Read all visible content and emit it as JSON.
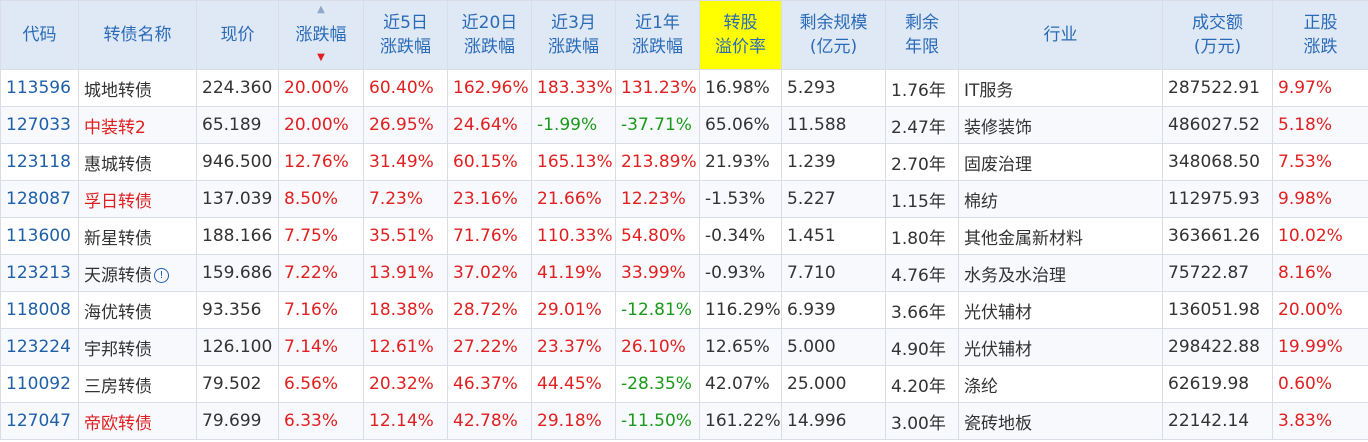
{
  "headers": [
    "代码",
    "转债名称",
    "现价",
    "涨跌幅",
    "近5日|涨跌幅",
    "近20日|涨跌幅",
    "近3月|涨跌幅",
    "近1年|涨跌幅",
    "转股|溢价率",
    "剩余规模|(亿元)",
    "剩余|年限",
    "行业",
    "成交额|(万元)",
    "正股|涨跌"
  ],
  "highlight_color": "#ffff00",
  "rows": [
    {
      "code": "113596",
      "name": "城地转债",
      "name_red": false,
      "price": "224.360",
      "chg": "20.00%",
      "chg5": "60.40%",
      "chg20": "162.96%",
      "chg3m": "183.33%",
      "chg1y": "131.23%",
      "premium": "16.98%",
      "remain": "5.293",
      "years": "1.76年",
      "industry": "IT服务",
      "amount": "287522.91",
      "stock": "9.97%"
    },
    {
      "code": "127033",
      "name": "中装转2",
      "name_red": true,
      "price": "65.189",
      "chg": "20.00%",
      "chg5": "26.95%",
      "chg20": "24.64%",
      "chg3m": "-1.99%",
      "chg1y": "-37.71%",
      "premium": "65.06%",
      "remain": "11.588",
      "years": "2.47年",
      "industry": "装修装饰",
      "amount": "486027.52",
      "stock": "5.18%"
    },
    {
      "code": "123118",
      "name": "惠城转债",
      "name_red": false,
      "price": "946.500",
      "chg": "12.76%",
      "chg5": "31.49%",
      "chg20": "60.15%",
      "chg3m": "165.13%",
      "chg1y": "213.89%",
      "premium": "21.93%",
      "remain": "1.239",
      "years": "2.70年",
      "industry": "固废治理",
      "amount": "348068.50",
      "stock": "7.53%"
    },
    {
      "code": "128087",
      "name": "孚日转债",
      "name_red": true,
      "price": "137.039",
      "chg": "8.50%",
      "chg5": "7.23%",
      "chg20": "23.16%",
      "chg3m": "21.66%",
      "chg1y": "12.23%",
      "premium": "-1.53%",
      "remain": "5.227",
      "years": "1.15年",
      "industry": "棉纺",
      "amount": "112975.93",
      "stock": "9.98%"
    },
    {
      "code": "113600",
      "name": "新星转债",
      "name_red": false,
      "price": "188.166",
      "chg": "7.75%",
      "chg5": "35.51%",
      "chg20": "71.76%",
      "chg3m": "110.33%",
      "chg1y": "54.80%",
      "premium": "-0.34%",
      "remain": "1.451",
      "years": "1.80年",
      "industry": "其他金属新材料",
      "amount": "363661.26",
      "stock": "10.02%"
    },
    {
      "code": "123213",
      "name": "天源转债",
      "name_red": false,
      "info": true,
      "price": "159.686",
      "chg": "7.22%",
      "chg5": "13.91%",
      "chg20": "37.02%",
      "chg3m": "41.19%",
      "chg1y": "33.99%",
      "premium": "-0.93%",
      "remain": "7.710",
      "years": "4.76年",
      "industry": "水务及水治理",
      "amount": "75722.87",
      "stock": "8.16%"
    },
    {
      "code": "118008",
      "name": "海优转债",
      "name_red": false,
      "price": "93.356",
      "chg": "7.16%",
      "chg5": "18.38%",
      "chg20": "28.72%",
      "chg3m": "29.01%",
      "chg1y": "-12.81%",
      "premium": "116.29%",
      "remain": "6.939",
      "years": "3.66年",
      "industry": "光伏辅材",
      "amount": "136051.98",
      "stock": "20.00%"
    },
    {
      "code": "123224",
      "name": "宇邦转债",
      "name_red": false,
      "price": "126.100",
      "chg": "7.14%",
      "chg5": "12.61%",
      "chg20": "27.22%",
      "chg3m": "23.37%",
      "chg1y": "26.10%",
      "premium": "12.65%",
      "remain": "5.000",
      "years": "4.90年",
      "industry": "光伏辅材",
      "amount": "298422.88",
      "stock": "19.99%"
    },
    {
      "code": "110092",
      "name": "三房转债",
      "name_red": false,
      "price": "79.502",
      "chg": "6.56%",
      "chg5": "20.32%",
      "chg20": "46.37%",
      "chg3m": "44.45%",
      "chg1y": "-28.35%",
      "premium": "42.07%",
      "remain": "25.000",
      "years": "4.20年",
      "industry": "涤纶",
      "amount": "62619.98",
      "stock": "0.60%"
    },
    {
      "code": "127047",
      "name": "帝欧转债",
      "name_red": true,
      "price": "79.699",
      "chg": "6.33%",
      "chg5": "12.14%",
      "chg20": "42.78%",
      "chg3m": "29.18%",
      "chg1y": "-11.50%",
      "premium": "161.22%",
      "remain": "14.996",
      "years": "3.00年",
      "industry": "瓷砖地板",
      "amount": "22142.14",
      "stock": "3.83%"
    }
  ]
}
